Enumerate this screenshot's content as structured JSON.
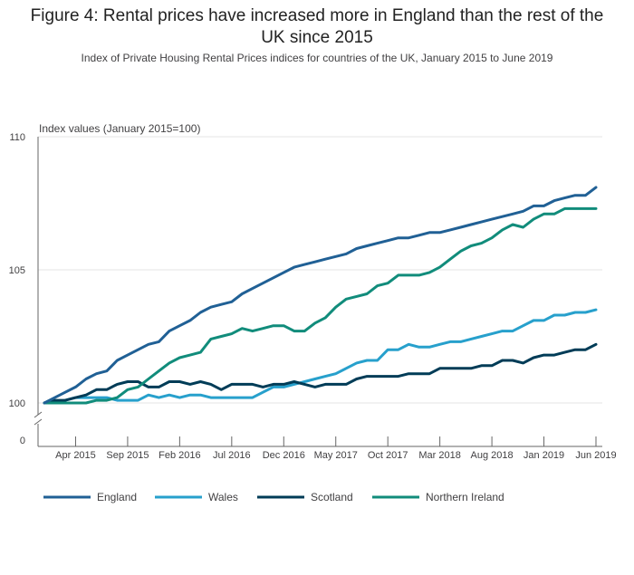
{
  "header": {
    "title": "Figure 4: Rental prices have increased more in England than the rest of the UK since 2015",
    "subtitle": "Index of Private Housing Rental Prices indices for countries of the UK, January 2015 to June 2019"
  },
  "colors": {
    "England": "#206095",
    "Wales": "#27a0cc",
    "Scotland": "#003c57",
    "Northern Ireland": "#118c7b",
    "grid": "#e6e6e6",
    "axis": "#666666",
    "text": "#414042"
  },
  "chart_data": {
    "type": "line",
    "ylabel": "Index values (January 2015=100)",
    "ylim": [
      100,
      110
    ],
    "y_ticks": [
      100,
      105,
      110
    ],
    "y_break_label": "0",
    "grid": true,
    "legend_position": "bottom",
    "x_tick_labels": [
      "Apr 2015",
      "Sep 2015",
      "Feb 2016",
      "Jul 2016",
      "Dec 2016",
      "May 2017",
      "Oct 2017",
      "Mar 2018",
      "Aug 2018",
      "Jan 2019",
      "Jun 2019"
    ],
    "x_tick_indices": [
      3,
      8,
      13,
      18,
      23,
      28,
      33,
      38,
      43,
      48,
      53
    ],
    "months": [
      "Jan 2015",
      "Feb 2015",
      "Mar 2015",
      "Apr 2015",
      "May 2015",
      "Jun 2015",
      "Jul 2015",
      "Aug 2015",
      "Sep 2015",
      "Oct 2015",
      "Nov 2015",
      "Dec 2015",
      "Jan 2016",
      "Feb 2016",
      "Mar 2016",
      "Apr 2016",
      "May 2016",
      "Jun 2016",
      "Jul 2016",
      "Aug 2016",
      "Sep 2016",
      "Oct 2016",
      "Nov 2016",
      "Dec 2016",
      "Jan 2017",
      "Feb 2017",
      "Mar 2017",
      "Apr 2017",
      "May 2017",
      "Jun 2017",
      "Jul 2017",
      "Aug 2017",
      "Sep 2017",
      "Oct 2017",
      "Nov 2017",
      "Dec 2017",
      "Jan 2018",
      "Feb 2018",
      "Mar 2018",
      "Apr 2018",
      "May 2018",
      "Jun 2018",
      "Jul 2018",
      "Aug 2018",
      "Sep 2018",
      "Oct 2018",
      "Nov 2018",
      "Dec 2018",
      "Jan 2019",
      "Feb 2019",
      "Mar 2019",
      "Apr 2019",
      "May 2019",
      "Jun 2019"
    ],
    "series": [
      {
        "name": "England",
        "values": [
          100.0,
          100.2,
          100.4,
          100.6,
          100.9,
          101.1,
          101.2,
          101.6,
          101.8,
          102.0,
          102.2,
          102.3,
          102.7,
          102.9,
          103.1,
          103.4,
          103.6,
          103.7,
          103.8,
          104.1,
          104.3,
          104.5,
          104.7,
          104.9,
          105.1,
          105.2,
          105.3,
          105.4,
          105.5,
          105.6,
          105.8,
          105.9,
          106.0,
          106.1,
          106.2,
          106.2,
          106.3,
          106.4,
          106.4,
          106.5,
          106.6,
          106.7,
          106.8,
          106.9,
          107.0,
          107.1,
          107.2,
          107.4,
          107.4,
          107.6,
          107.7,
          107.8,
          107.8,
          108.1
        ]
      },
      {
        "name": "Wales",
        "values": [
          100.0,
          100.0,
          100.1,
          100.2,
          100.2,
          100.2,
          100.2,
          100.1,
          100.1,
          100.1,
          100.3,
          100.2,
          100.3,
          100.2,
          100.3,
          100.3,
          100.2,
          100.2,
          100.2,
          100.2,
          100.2,
          100.4,
          100.6,
          100.6,
          100.7,
          100.8,
          100.9,
          101.0,
          101.1,
          101.3,
          101.5,
          101.6,
          101.6,
          102.0,
          102.0,
          102.2,
          102.1,
          102.1,
          102.2,
          102.3,
          102.3,
          102.4,
          102.5,
          102.6,
          102.7,
          102.7,
          102.9,
          103.1,
          103.1,
          103.3,
          103.3,
          103.4,
          103.4,
          103.5
        ]
      },
      {
        "name": "Scotland",
        "values": [
          100.0,
          100.1,
          100.1,
          100.2,
          100.3,
          100.5,
          100.5,
          100.7,
          100.8,
          100.8,
          100.6,
          100.6,
          100.8,
          100.8,
          100.7,
          100.8,
          100.7,
          100.5,
          100.7,
          100.7,
          100.7,
          100.6,
          100.7,
          100.7,
          100.8,
          100.7,
          100.6,
          100.7,
          100.7,
          100.7,
          100.9,
          101.0,
          101.0,
          101.0,
          101.0,
          101.1,
          101.1,
          101.1,
          101.3,
          101.3,
          101.3,
          101.3,
          101.4,
          101.4,
          101.6,
          101.6,
          101.5,
          101.7,
          101.8,
          101.8,
          101.9,
          102.0,
          102.0,
          102.2
        ]
      },
      {
        "name": "Northern Ireland",
        "values": [
          100.0,
          100.0,
          100.0,
          100.0,
          100.0,
          100.1,
          100.1,
          100.2,
          100.5,
          100.6,
          100.9,
          101.2,
          101.5,
          101.7,
          101.8,
          101.9,
          102.4,
          102.5,
          102.6,
          102.8,
          102.7,
          102.8,
          102.9,
          102.9,
          102.7,
          102.7,
          103.0,
          103.2,
          103.6,
          103.9,
          104.0,
          104.1,
          104.4,
          104.5,
          104.8,
          104.8,
          104.8,
          104.9,
          105.1,
          105.4,
          105.7,
          105.9,
          106.0,
          106.2,
          106.5,
          106.7,
          106.6,
          106.9,
          107.1,
          107.1,
          107.3,
          107.3,
          107.3,
          107.3
        ]
      }
    ]
  }
}
